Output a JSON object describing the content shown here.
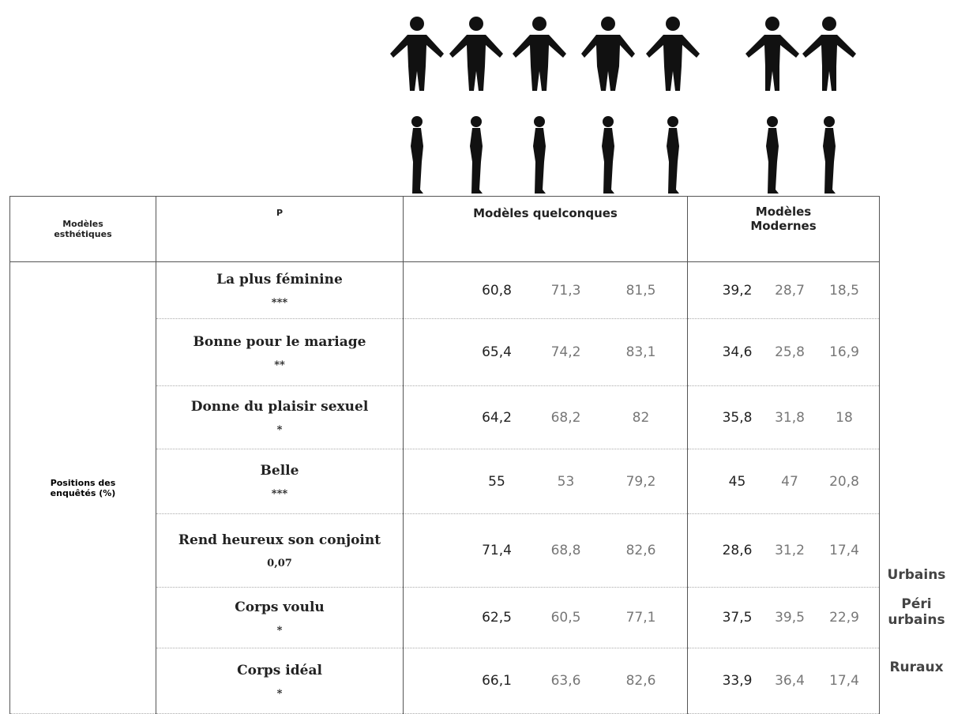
{
  "table": {
    "header": [
      "Modèles esthétiques",
      "P",
      "Modèles quelconques",
      "Modèles Modernes"
    ],
    "row_group_label": "Positions des enquêtés (%)",
    "rows": [
      {
        "label": "La plus féminine",
        "p": "***",
        "quelconques": [
          "60,8",
          "71,3",
          "81,5"
        ],
        "modernes": [
          "39,2",
          "28,7",
          "18,5"
        ]
      },
      {
        "label": "Bonne pour le mariage",
        "p": "**",
        "quelconques": [
          "65,4",
          "74,2",
          "83,1"
        ],
        "modernes": [
          "34,6",
          "25,8",
          "16,9"
        ]
      },
      {
        "label": "Donne du plaisir sexuel",
        "p": "*",
        "quelconques": [
          "64,2",
          "68,2",
          "82"
        ],
        "modernes": [
          "35,8",
          "31,8",
          "18"
        ]
      },
      {
        "label": "Belle",
        "p": "***",
        "quelconques": [
          "55",
          "53",
          "79,2"
        ],
        "modernes": [
          "45",
          "47",
          "20,8"
        ]
      },
      {
        "label": "Rend heureux son conjoint",
        "p": "0,07",
        "quelconques": [
          "71,4",
          "68,8",
          "82,6"
        ],
        "modernes": [
          "28,6",
          "31,2",
          "17,4"
        ]
      },
      {
        "label": "Corps voulu",
        "p": "*",
        "quelconques": [
          "62,5",
          "60,5",
          "77,1"
        ],
        "modernes": [
          "37,5",
          "39,5",
          "22,9"
        ]
      },
      {
        "label": "Corps idéal",
        "p": "*",
        "quelconques": [
          "66,1",
          "63,6",
          "82,6"
        ],
        "modernes": [
          "33,9",
          "36,4",
          "17,4"
        ]
      }
    ]
  },
  "legend": [
    "Urbains",
    "Péri urbains",
    "Ruraux"
  ]
}
